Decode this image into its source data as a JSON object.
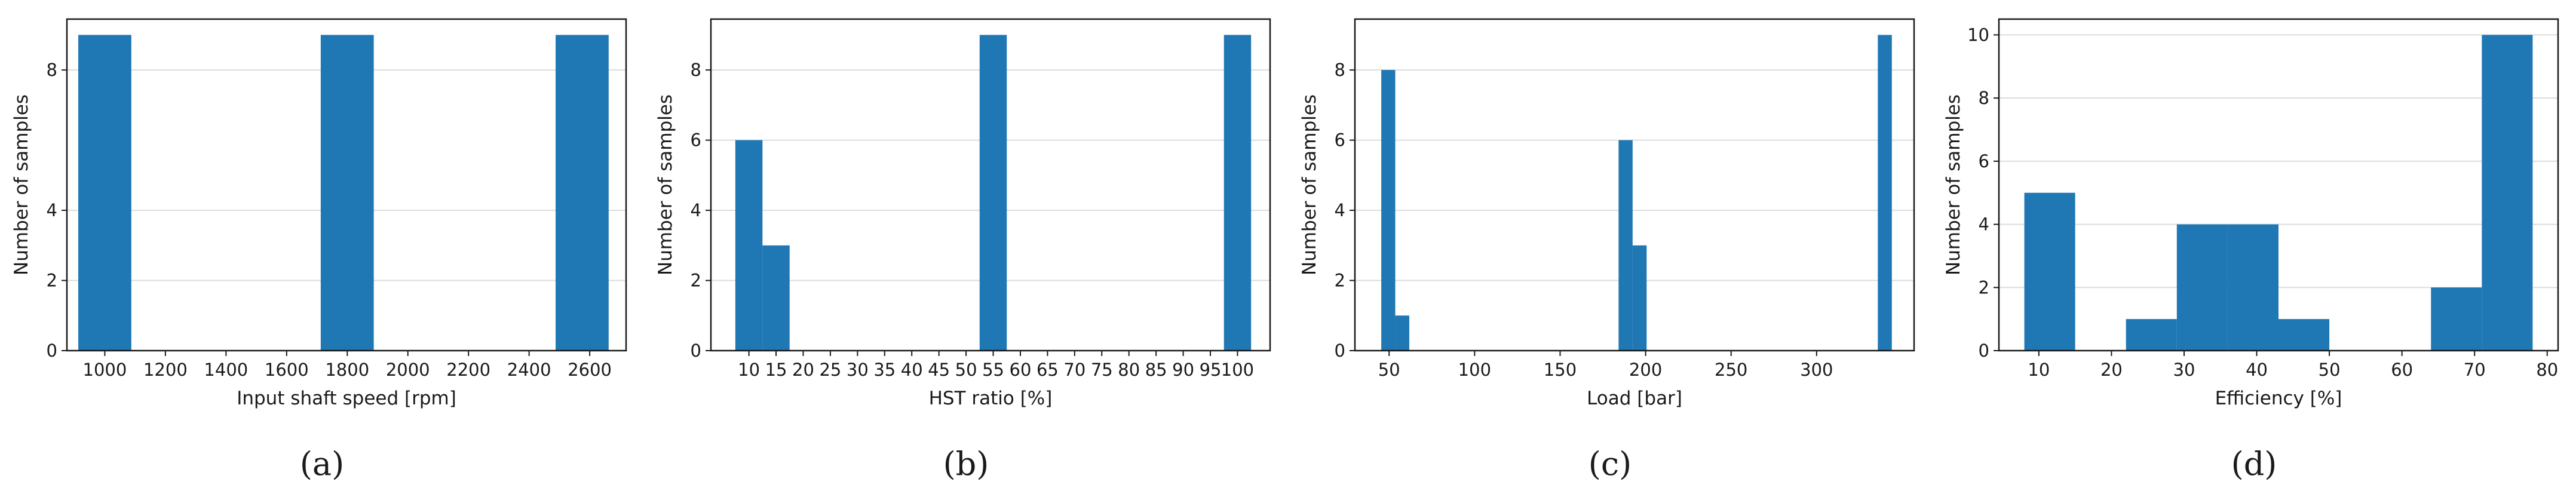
{
  "chart_data": [
    {
      "type": "bar",
      "caption": "(a)",
      "xlabel": "Input shaft speed [rpm]",
      "ylabel": "Number of samples",
      "xlim": [
        875,
        2720
      ],
      "ylim": [
        0,
        9.45
      ],
      "xticks": [
        1000,
        1200,
        1400,
        1600,
        1800,
        2000,
        2200,
        2400,
        2600
      ],
      "yticks": [
        0,
        2,
        4,
        8
      ],
      "grid": "horizontal",
      "bars": [
        {
          "x0": 912.5,
          "x1": 1087.5,
          "value": 9
        },
        {
          "x0": 1712.5,
          "x1": 1887.5,
          "value": 9
        },
        {
          "x0": 2487.5,
          "x1": 2662.5,
          "value": 9
        }
      ]
    },
    {
      "type": "bar",
      "caption": "(b)",
      "xlabel": "HST ratio [%]",
      "ylabel": "Number of samples",
      "xlim": [
        3,
        106
      ],
      "ylim": [
        0,
        9.45
      ],
      "xticks": [
        10,
        15,
        20,
        25,
        30,
        35,
        40,
        45,
        50,
        55,
        60,
        65,
        70,
        75,
        80,
        85,
        90,
        95,
        100
      ],
      "xticklabels": [
        "10",
        "15",
        "20",
        "25",
        "30",
        "35",
        "40",
        "45",
        "50",
        "55",
        "60",
        "65",
        "70",
        "75",
        "80",
        "85",
        "90",
        "95",
        "100"
      ],
      "yticks": [
        0,
        2,
        4,
        6,
        8
      ],
      "grid": "horizontal",
      "bars": [
        {
          "x0": 7.5,
          "x1": 12.5,
          "value": 6
        },
        {
          "x0": 12.5,
          "x1": 17.5,
          "value": 3
        },
        {
          "x0": 52.5,
          "x1": 57.5,
          "value": 9
        },
        {
          "x0": 97.5,
          "x1": 102.5,
          "value": 9
        }
      ]
    },
    {
      "type": "bar",
      "caption": "(c)",
      "xlabel": "Load [bar]",
      "ylabel": "Number of samples",
      "xlim": [
        30,
        357
      ],
      "ylim": [
        0,
        9.45
      ],
      "xticks": [
        50,
        100,
        150,
        200,
        250,
        300
      ],
      "yticks": [
        0,
        2,
        4,
        6,
        8
      ],
      "grid": "horizontal",
      "bars": [
        {
          "x0": 45.4,
          "x1": 53.6,
          "value": 8
        },
        {
          "x0": 53.6,
          "x1": 61.8,
          "value": 1
        },
        {
          "x0": 184.2,
          "x1": 192.4,
          "value": 6
        },
        {
          "x0": 192.4,
          "x1": 200.6,
          "value": 3
        },
        {
          "x0": 335.8,
          "x1": 344.0,
          "value": 9
        }
      ]
    },
    {
      "type": "bar",
      "caption": "(d)",
      "xlabel": "Efficiency [%]",
      "ylabel": "Number of samples",
      "xlim": [
        4.5,
        81.5
      ],
      "ylim": [
        0,
        10.5
      ],
      "xticks": [
        10,
        20,
        30,
        40,
        50,
        60,
        70,
        80
      ],
      "yticks": [
        0,
        2,
        4,
        6,
        8,
        10
      ],
      "grid": "horizontal",
      "bars": [
        {
          "x0": 8,
          "x1": 15,
          "value": 5
        },
        {
          "x0": 22,
          "x1": 29,
          "value": 1
        },
        {
          "x0": 29,
          "x1": 36,
          "value": 4
        },
        {
          "x0": 36,
          "x1": 43,
          "value": 4
        },
        {
          "x0": 43,
          "x1": 50,
          "value": 1
        },
        {
          "x0": 64,
          "x1": 71,
          "value": 2
        },
        {
          "x0": 71,
          "x1": 78,
          "value": 10
        }
      ]
    }
  ],
  "colors": {
    "bar": "#1f77b4",
    "grid": "#dcdcdc",
    "axis": "#1a1a1a"
  }
}
